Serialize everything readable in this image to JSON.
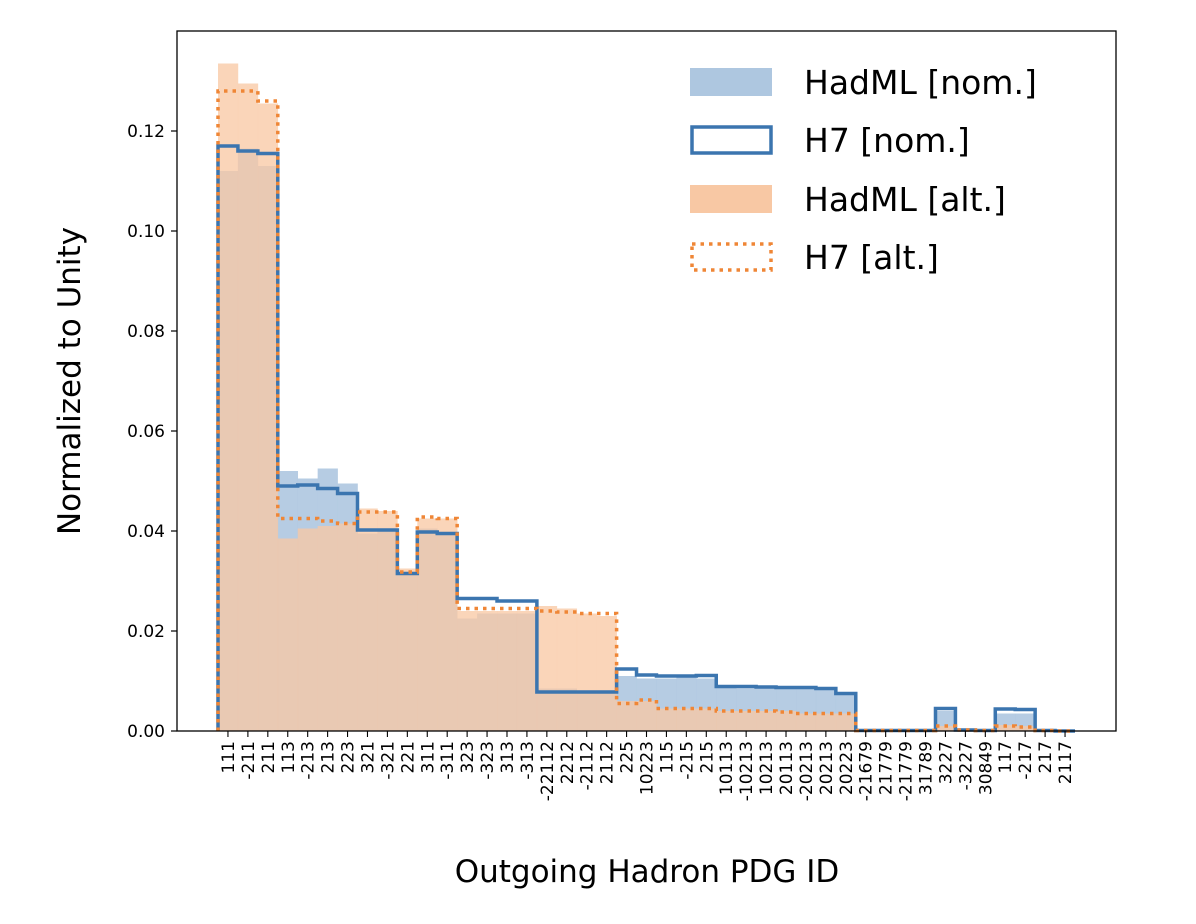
{
  "chart_data": {
    "type": "bar",
    "xlabel": "Outgoing Hadron PDG ID",
    "ylabel": "Normalized to Unity",
    "ylim": [
      0,
      0.14
    ],
    "yticks": [
      "0.00",
      "0.02",
      "0.04",
      "0.06",
      "0.08",
      "0.10",
      "0.12"
    ],
    "grid": false,
    "legend_position": "top-right",
    "colors": {
      "hadml_nom": "#aec7e0",
      "h7_nom": "#3b75af",
      "hadml_alt": "#f8c8a4",
      "h7_alt": "#ef8636"
    },
    "categories": [
      "111",
      "-211",
      "211",
      "113",
      "-213",
      "213",
      "223",
      "321",
      "-321",
      "221",
      "311",
      "-311",
      "323",
      "-323",
      "313",
      "-313",
      "-22112",
      "2212",
      "-2112",
      "2112",
      "225",
      "10223",
      "115",
      "-215",
      "215",
      "10113",
      "-10213",
      "10213",
      "20113",
      "-20213",
      "20213",
      "20223",
      "-21679",
      "21779",
      "-21779",
      "31789",
      "3227",
      "-3227",
      "30849",
      "117",
      "-217",
      "217",
      "2117"
    ],
    "tick_labels": [
      "111",
      "-211",
      "211",
      "113",
      "-213",
      "213",
      "223",
      "321",
      "-321",
      "221",
      "311",
      "-311",
      "323",
      "-323",
      "313",
      "-313",
      "-22112",
      "2212",
      "-2112",
      "2112",
      "225",
      "10223",
      "115",
      "-215",
      "215",
      "10113",
      "-10213",
      "10213",
      "20113",
      "-20213",
      "20213",
      "20223",
      "-21679",
      "21779",
      "-21779",
      "31789",
      "3227",
      "-3227",
      "30849",
      "117",
      "-217",
      "217",
      "2117"
    ],
    "series": [
      {
        "name": "HadML [nom.]",
        "values": [
          0.112,
          0.1165,
          0.113,
          0.052,
          0.0505,
          0.0525,
          0.0495,
          0.0395,
          0.0405,
          0.0315,
          0.0405,
          0.0395,
          0.0225,
          0.0235,
          0.0235,
          0.0235,
          0.0085,
          0.0085,
          0.008,
          0.0075,
          0.011,
          0.0105,
          0.0105,
          0.011,
          0.0105,
          0.009,
          0.0085,
          0.009,
          0.0085,
          0.009,
          0.0085,
          0.0075,
          0.0003,
          0.0003,
          0.0003,
          0.0003,
          0.004,
          0.0003,
          0.0003,
          0.0035,
          0.0035,
          0.0003,
          0.0002
        ]
      },
      {
        "name": "H7 [nom.]",
        "values": [
          0.117,
          0.116,
          0.1155,
          0.049,
          0.0492,
          0.0485,
          0.0475,
          0.0402,
          0.0402,
          0.0315,
          0.0398,
          0.0395,
          0.0265,
          0.0265,
          0.026,
          0.026,
          0.0078,
          0.0078,
          0.0078,
          0.0078,
          0.0124,
          0.0112,
          0.011,
          0.011,
          0.0111,
          0.0089,
          0.0089,
          0.0088,
          0.0087,
          0.0087,
          0.0085,
          0.0075,
          0.0001,
          0.0001,
          0.0001,
          0.0001,
          0.0045,
          0.0002,
          0.0001,
          0.0044,
          0.0043,
          0.0001,
          0.0
        ]
      },
      {
        "name": "HadML [alt.]",
        "values": [
          0.1335,
          0.1295,
          0.1255,
          0.0385,
          0.0405,
          0.041,
          0.0415,
          0.0445,
          0.044,
          0.0325,
          0.0425,
          0.0425,
          0.024,
          0.024,
          0.024,
          0.024,
          0.025,
          0.0245,
          0.0235,
          0.023,
          0.006,
          0.006,
          0.0045,
          0.0045,
          0.0045,
          0.004,
          0.004,
          0.004,
          0.004,
          0.0035,
          0.0035,
          0.0035,
          0.0003,
          0.0003,
          0.0003,
          0.0003,
          0.001,
          0.0003,
          0.0003,
          0.0012,
          0.001,
          0.0003,
          0.0002
        ]
      },
      {
        "name": "H7 [alt.]",
        "values": [
          0.128,
          0.128,
          0.126,
          0.0425,
          0.0425,
          0.042,
          0.0415,
          0.0438,
          0.0438,
          0.0318,
          0.0428,
          0.0425,
          0.0245,
          0.0245,
          0.0245,
          0.0245,
          0.024,
          0.0238,
          0.0235,
          0.0235,
          0.0055,
          0.0062,
          0.0045,
          0.0045,
          0.0045,
          0.004,
          0.004,
          0.004,
          0.0038,
          0.0035,
          0.0035,
          0.0035,
          0.0001,
          0.0001,
          0.0001,
          0.0001,
          0.001,
          0.0002,
          0.0001,
          0.001,
          0.0008,
          0.0001,
          0.0
        ]
      }
    ]
  }
}
